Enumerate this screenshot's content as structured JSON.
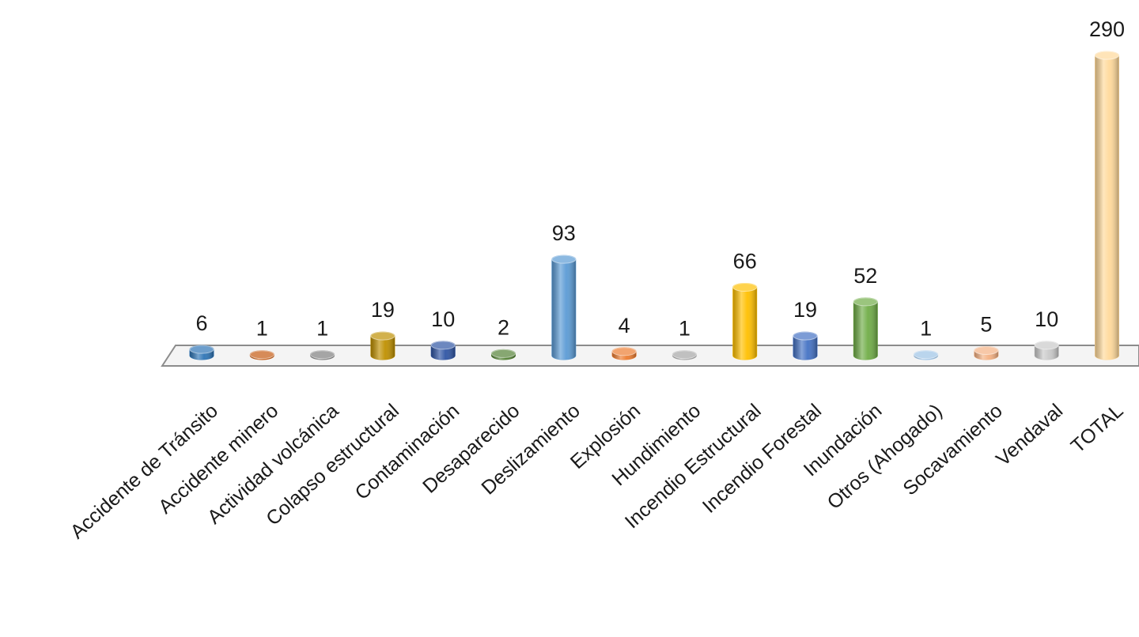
{
  "chart_data": {
    "type": "bar",
    "categories": [
      "Accidente de Tránsito",
      "Accidente minero",
      "Actividad volcánica",
      "Colapso estructural",
      "Contaminación",
      "Desaparecido",
      "Deslizamiento",
      "Explosión",
      "Hundimiento",
      "Incendio Estructural",
      "Incendio Forestal",
      "Inundación",
      "Otros (Ahogado)",
      "Socavamiento",
      "Vendaval",
      "TOTAL"
    ],
    "values": [
      6,
      1,
      1,
      19,
      10,
      2,
      93,
      4,
      1,
      66,
      19,
      52,
      1,
      5,
      10,
      290
    ],
    "colors": [
      "#2e75b6",
      "#c55a11",
      "#7f7f7f",
      "#bf9000",
      "#2f55a4",
      "#548235",
      "#5b9bd5",
      "#ed7d31",
      "#a5a5a5",
      "#ffc000",
      "#4472c4",
      "#70ad47",
      "#9dc3e6",
      "#f4b183",
      "#c9c9c9",
      "#ffd99a"
    ]
  }
}
